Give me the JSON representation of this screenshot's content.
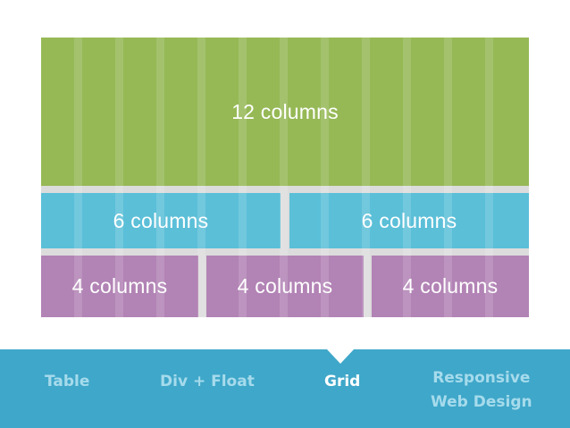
{
  "grid": {
    "row1": "12 columns",
    "row2": [
      "6 columns",
      "6 columns"
    ],
    "row3": [
      "4 columns",
      "4 columns",
      "4 columns"
    ]
  },
  "nav": {
    "items": [
      "Table",
      "Div + Float",
      "Grid"
    ],
    "responsive": [
      "Responsive",
      "Web Design"
    ],
    "active": "Grid"
  },
  "colors": {
    "green": "#96b956",
    "blue": "#5bbfd8",
    "purple": "#b283b5",
    "nav": "#3fa7c9",
    "nav_text": "#a6dbec",
    "nav_active": "#ffffff"
  }
}
